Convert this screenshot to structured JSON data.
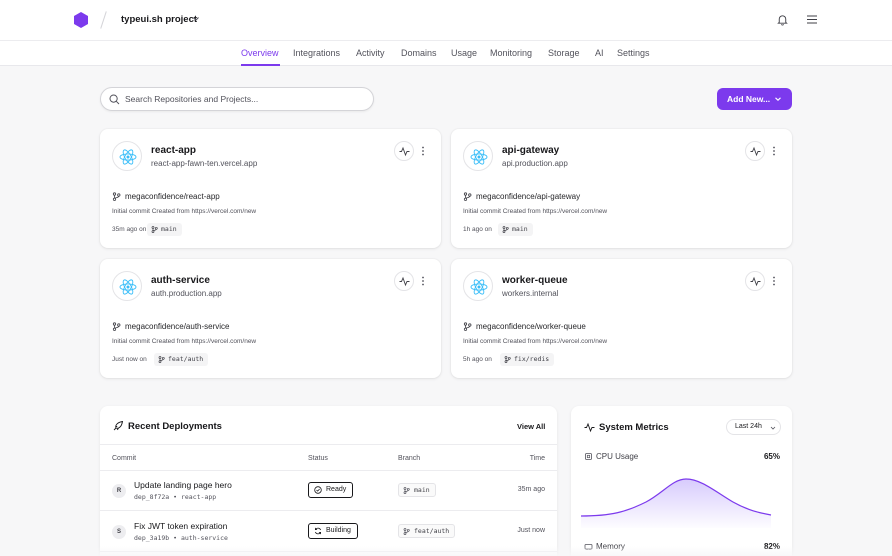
{
  "header": {
    "project_name": "typeui.sh project",
    "brand_color": "#7c3aed"
  },
  "nav": {
    "tabs": [
      {
        "label": "Overview",
        "active": true
      },
      {
        "label": "Integrations"
      },
      {
        "label": "Activity"
      },
      {
        "label": "Domains"
      },
      {
        "label": "Usage"
      },
      {
        "label": "Monitoring"
      },
      {
        "label": "Storage"
      },
      {
        "label": "AI"
      },
      {
        "label": "Settings"
      }
    ]
  },
  "search": {
    "placeholder": "Search Repositories and Projects...",
    "value": ""
  },
  "add_button": {
    "label": "Add New..."
  },
  "projects": [
    {
      "name": "react-app",
      "domain": "react-app-fawn-ten.vercel.app",
      "repo": "megaconfidence/react-app",
      "commit": "Initial commit Created from https://vercel.com/new",
      "ago": "35m ago on",
      "branch": "main"
    },
    {
      "name": "api-gateway",
      "domain": "api.production.app",
      "repo": "megaconfidence/api-gateway",
      "commit": "Initial commit Created from https://vercel.com/new",
      "ago": "1h ago on",
      "branch": "main"
    },
    {
      "name": "auth-service",
      "domain": "auth.production.app",
      "repo": "megaconfidence/auth-service",
      "commit": "Initial commit Created from https://vercel.com/new",
      "ago": "Just now on",
      "branch": "feat/auth"
    },
    {
      "name": "worker-queue",
      "domain": "workers.internal",
      "repo": "megaconfidence/worker-queue",
      "commit": "Initial commit Created from https://vercel.com/new",
      "ago": "5h ago on",
      "branch": "fix/redis"
    }
  ],
  "deployments": {
    "title": "Recent Deployments",
    "view_all": "View All",
    "columns": {
      "commit": "Commit",
      "status": "Status",
      "branch": "Branch",
      "time": "Time"
    },
    "rows": [
      {
        "avatar": "R",
        "message": "Update landing page hero",
        "id": "dep_8f72a • react-app",
        "status": "Ready",
        "status_icon": "check-circle-icon",
        "branch": "main",
        "time": "35m ago"
      },
      {
        "avatar": "S",
        "message": "Fix JWT token expiration",
        "id": "dep_3a19b • auth-service",
        "status": "Building",
        "status_icon": "refresh-icon",
        "branch": "feat/auth",
        "time": "Just now"
      }
    ]
  },
  "metrics": {
    "title": "System Metrics",
    "range": "Last 24h",
    "cpu": {
      "label": "CPU Usage",
      "value": "65%"
    },
    "memory": {
      "label": "Memory",
      "value": "82%"
    },
    "chart_color": "#7c3aed"
  }
}
